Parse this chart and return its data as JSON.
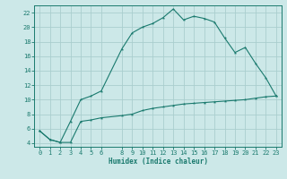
{
  "xlabel": "Humidex (Indice chaleur)",
  "bg_color": "#cce8e8",
  "grid_color": "#aacece",
  "line_color": "#1a7a6e",
  "ylim": [
    3.5,
    23.0
  ],
  "xlim": [
    -0.5,
    23.5
  ],
  "yticks": [
    4,
    6,
    8,
    10,
    12,
    14,
    16,
    18,
    20,
    22
  ],
  "xticks": [
    0,
    1,
    2,
    3,
    4,
    5,
    6,
    8,
    9,
    10,
    11,
    12,
    13,
    14,
    15,
    16,
    17,
    18,
    19,
    20,
    21,
    22,
    23
  ],
  "upper_x": [
    0,
    1,
    2,
    3,
    4,
    5,
    6,
    8,
    9,
    10,
    11,
    12,
    13,
    14,
    15,
    16,
    17,
    18,
    19,
    20,
    21,
    22,
    23
  ],
  "upper_y": [
    5.7,
    4.5,
    4.1,
    7.0,
    10.0,
    10.5,
    11.2,
    17.0,
    19.2,
    20.0,
    20.5,
    21.3,
    22.5,
    21.0,
    21.5,
    21.2,
    20.7,
    18.5,
    16.5,
    17.2,
    15.0,
    13.0,
    10.5
  ],
  "lower_x": [
    0,
    1,
    2,
    3,
    4,
    5,
    6,
    8,
    9,
    10,
    11,
    12,
    13,
    14,
    15,
    16,
    17,
    18,
    19,
    20,
    21,
    22,
    23
  ],
  "lower_y": [
    5.7,
    4.5,
    4.1,
    4.1,
    7.0,
    7.2,
    7.5,
    7.8,
    8.0,
    8.5,
    8.8,
    9.0,
    9.2,
    9.4,
    9.5,
    9.6,
    9.7,
    9.8,
    9.9,
    10.0,
    10.2,
    10.4,
    10.5
  ]
}
